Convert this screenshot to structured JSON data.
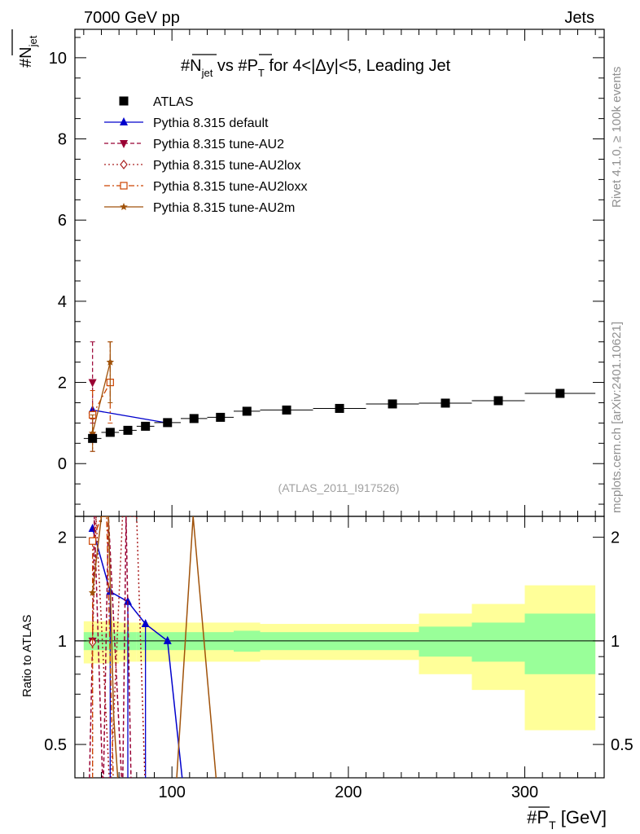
{
  "header": {
    "left": "7000 GeV pp",
    "right": "Jets"
  },
  "side_text": {
    "rivet": "Rivet 4.1.0, ≥ 100k events",
    "mcplots": "mcplots.cern.ch [arXiv:2401.10621]"
  },
  "chart_data": {
    "type": "scatter",
    "title": "#N_jet vs #P_T for 4<|Δy|<5, Leading Jet",
    "title_parts": {
      "a": "#N",
      "a_sub": "jet",
      "b": " vs #",
      "c": "P",
      "c_sub": "T",
      "d": " for 4<|Δy|<5, Leading Jet"
    },
    "ylabel": {
      "main": "#N",
      "sub": "jet"
    },
    "xlabel": {
      "a": "#",
      "b": "P",
      "b_sub": "T",
      "c": " [GeV]"
    },
    "ratio_ylabel": "Ratio to ATLAS",
    "watermark": "(ATLAS_2011_I917526)",
    "xlim": [
      45,
      345
    ],
    "ylim": [
      -1.3,
      10.7
    ],
    "ratio_ylim": [
      0.4,
      2.3
    ],
    "xticks": [
      100,
      200,
      300
    ],
    "xtick_labels": [
      "100",
      "200",
      "300"
    ],
    "yticks": [
      0,
      2,
      4,
      6,
      8,
      10
    ],
    "ytick_labels": [
      "0",
      "2",
      "4",
      "6",
      "8",
      "10"
    ],
    "ratio_yticks": [
      0.5,
      1,
      2
    ],
    "ratio_ytick_labels": [
      "0.5",
      "1",
      "2"
    ],
    "atlas": {
      "name": "ATLAS",
      "x": [
        55,
        65,
        75,
        85,
        97.5,
        112.5,
        127.5,
        142.5,
        165,
        195,
        225,
        255,
        285,
        320
      ],
      "y": [
        0.62,
        0.77,
        0.82,
        0.92,
        1.01,
        1.11,
        1.14,
        1.29,
        1.32,
        1.36,
        1.47,
        1.49,
        1.55,
        1.73
      ],
      "xerr": [
        5,
        5,
        5,
        5,
        7.5,
        7.5,
        7.5,
        7.5,
        15,
        15,
        15,
        15,
        15,
        20
      ],
      "band_edges": [
        50,
        60,
        70,
        80,
        90,
        105,
        120,
        135,
        150,
        180,
        210,
        240,
        270,
        300,
        340
      ],
      "band_stat": [
        0.06,
        0.06,
        0.06,
        0.06,
        0.06,
        0.06,
        0.06,
        0.07,
        0.06,
        0.06,
        0.06,
        0.1,
        0.13,
        0.2
      ],
      "band_tot": [
        0.14,
        0.14,
        0.13,
        0.13,
        0.13,
        0.13,
        0.13,
        0.13,
        0.12,
        0.12,
        0.12,
        0.2,
        0.28,
        0.45
      ]
    },
    "series": [
      {
        "name": "Pythia 8.315 default",
        "color": "#0000cc",
        "marker": "triangle-up",
        "dash": "",
        "x": [
          55,
          97.5
        ],
        "y": [
          1.32,
          1.0
        ],
        "ratio_x": [
          55,
          65,
          75,
          85,
          97.5,
          107
        ],
        "ratio_y": [
          2.12,
          1.39,
          1.3,
          1.12,
          1.0,
          0.35
        ],
        "ratio_marker_idx": [
          0,
          1,
          2,
          3,
          4
        ],
        "ratio_drops": [
          65,
          75,
          85
        ]
      },
      {
        "name": "Pythia 8.315 tune-AU2",
        "color": "#990033",
        "marker": "triangle-down",
        "dash": "5,3",
        "x": [
          55
        ],
        "y": [
          2.0
        ],
        "yerr_lo": [
          1.0
        ],
        "yerr_hi": [
          1.0
        ],
        "ratio_x": [
          53,
          55,
          56,
          61,
          64,
          72,
          74,
          77
        ],
        "ratio_y": [
          0.35,
          1.0,
          2.3,
          0.35,
          2.3,
          0.35,
          2.3,
          0.35
        ],
        "ratio_marker_idx": [
          1
        ],
        "ratio_drops": []
      },
      {
        "name": "Pythia 8.315 tune-AU2lox",
        "color": "#aa2222",
        "marker": "diamond-open",
        "dash": "2,3",
        "x": [
          55
        ],
        "y": [
          0.7
        ],
        "yerr_lo": [
          0.4
        ],
        "yerr_hi": [
          0.4
        ],
        "ratio_x": [
          55,
          57,
          65,
          72,
          80,
          85
        ],
        "ratio_y": [
          0.99,
          2.3,
          0.35,
          2.3,
          2.3,
          0.35
        ],
        "ratio_marker_idx": [
          0
        ],
        "ratio_drops": [
          55
        ]
      },
      {
        "name": "Pythia 8.315 tune-AU2loxx",
        "color": "#cc4400",
        "marker": "square-open",
        "dash": "7,3,2,3",
        "x": [
          55,
          65
        ],
        "y": [
          1.2,
          2.0
        ],
        "yerr_lo": [
          0.6,
          1.0
        ],
        "yerr_hi": [
          0.6,
          1.0
        ],
        "ratio_x": [
          55,
          60,
          63,
          67
        ],
        "ratio_y": [
          1.95,
          2.3,
          2.3,
          0.35
        ],
        "ratio_marker_idx": [
          0
        ],
        "ratio_drops": [
          55
        ]
      },
      {
        "name": "Pythia 8.315 tune-AU2m",
        "color": "#a0520a",
        "marker": "star",
        "dash": "",
        "x": [
          55,
          65
        ],
        "y": [
          0.75,
          2.5
        ],
        "yerr_lo": [
          0.45,
          1.0
        ],
        "yerr_hi": [
          0.45,
          0.5
        ],
        "ratio_x": [
          55,
          60,
          64,
          67,
          70,
          102,
          112,
          126
        ],
        "ratio_y": [
          1.38,
          2.3,
          2.3,
          0.6,
          0.35,
          0.35,
          2.3,
          0.35
        ],
        "ratio_marker_idx": [
          0
        ],
        "ratio_drops": []
      }
    ]
  }
}
